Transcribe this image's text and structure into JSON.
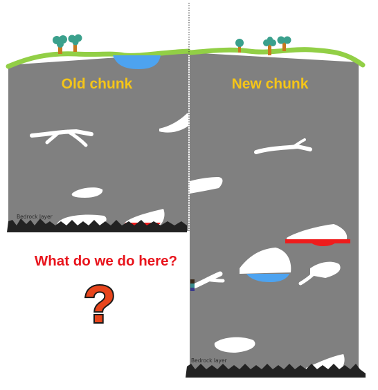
{
  "old_chunk": {
    "title": "Old chunk",
    "bedrock_label": "Bedrock layer"
  },
  "new_chunk": {
    "title": "New chunk",
    "bedrock_label": "Bedrock layer"
  },
  "question": {
    "text": "What do we do here?",
    "mark": "?"
  },
  "colors": {
    "stone": "#808080",
    "grass": "#92cf46",
    "water": "#4da3f0",
    "lava": "#ee1c1c",
    "bedrock": "#222222",
    "title": "#f5c518",
    "question_text": "#e8141c",
    "question_mark": "#e8451c",
    "tree_leaves": "#3aa08c",
    "tree_trunk": "#c8781e",
    "caves": "#ffffff"
  },
  "icons": {
    "question_mark": "question-mark-icon",
    "tree": "tree-icon",
    "player": "player-icon"
  }
}
